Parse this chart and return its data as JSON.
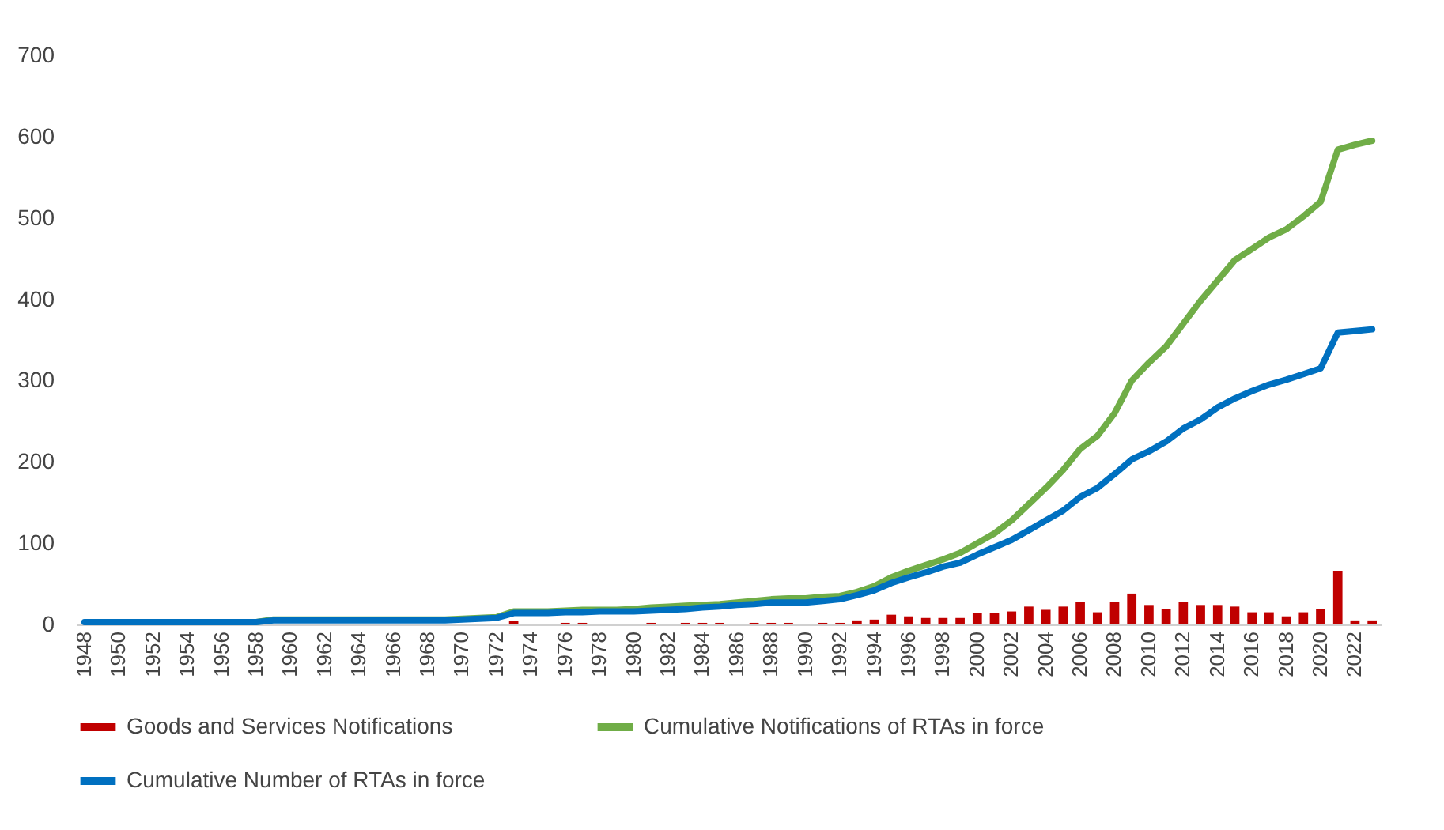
{
  "chart_data": {
    "type": "line",
    "categories": [
      "1948",
      null,
      "1950",
      null,
      "1952",
      null,
      "1954",
      null,
      "1956",
      null,
      "1958",
      null,
      "1960",
      null,
      "1962",
      null,
      "1964",
      null,
      "1966",
      null,
      "1968",
      null,
      "1970",
      null,
      "1972",
      null,
      "1974",
      null,
      "1976",
      null,
      "1978",
      null,
      "1980",
      null,
      "1982",
      null,
      "1984",
      null,
      "1986",
      null,
      "1988",
      null,
      "1990",
      null,
      "1992",
      null,
      "1994",
      null,
      "1996",
      null,
      "1998",
      null,
      "2000",
      null,
      "2002",
      null,
      "2004",
      null,
      "2006",
      null,
      "2008",
      null,
      "2010",
      null,
      "2012",
      null,
      "2014",
      null,
      "2016",
      null,
      "2018",
      null,
      "2020",
      null,
      "2022",
      null
    ],
    "series": [
      {
        "name": "Goods and Services Notifications",
        "type": "bar",
        "color": "#c00000",
        "values": [
          0,
          0,
          0,
          0,
          0,
          0,
          0,
          0,
          0,
          0,
          0,
          0,
          0,
          0,
          0,
          0,
          0,
          0,
          0,
          0,
          0,
          0,
          0,
          0,
          0,
          4,
          0,
          0,
          2,
          2,
          0,
          0,
          0,
          2,
          0,
          2,
          2,
          2,
          0,
          2,
          2,
          2,
          0,
          2,
          2,
          5,
          6,
          12,
          10,
          8,
          8,
          8,
          14,
          14,
          16,
          22,
          18,
          22,
          28,
          15,
          28,
          38,
          24,
          19,
          28,
          24,
          24,
          22,
          15,
          15,
          10,
          15,
          19,
          66,
          5,
          5
        ]
      },
      {
        "name": "Cumulative Notifications of RTAs in force",
        "color": "#70ad47",
        "values": [
          null,
          null,
          null,
          null,
          null,
          null,
          null,
          null,
          null,
          null,
          3,
          6,
          6,
          6,
          6,
          6,
          6,
          6,
          6,
          6,
          6,
          6,
          7,
          8,
          9,
          16,
          16,
          16,
          17,
          18,
          18,
          18,
          19,
          21,
          22,
          23,
          24,
          25,
          27,
          29,
          31,
          32,
          32,
          34,
          35,
          40,
          47,
          58,
          66,
          73,
          80,
          88,
          100,
          112,
          128,
          148,
          168,
          190,
          216,
          232,
          260,
          300,
          322,
          342,
          370,
          398,
          423,
          448,
          462,
          476,
          486,
          502,
          520,
          584,
          590,
          595
        ]
      },
      {
        "name": "Cumulative Number of RTAs in force",
        "color": "#0070c0",
        "values": [
          3,
          3,
          3,
          3,
          3,
          3,
          3,
          3,
          3,
          3,
          3,
          5,
          5,
          5,
          5,
          5,
          5,
          5,
          5,
          5,
          5,
          5,
          6,
          7,
          8,
          14,
          14,
          14,
          15,
          15,
          16,
          16,
          16,
          17,
          18,
          19,
          21,
          22,
          24,
          25,
          27,
          27,
          27,
          29,
          31,
          36,
          42,
          51,
          58,
          64,
          71,
          76,
          86,
          95,
          104,
          116,
          128,
          140,
          157,
          168,
          185,
          203,
          213,
          225,
          241,
          252,
          267,
          278,
          287,
          295,
          301,
          308,
          315,
          359,
          361,
          363
        ]
      }
    ],
    "ylim": [
      0,
      700
    ],
    "yticks": [
      0,
      100,
      200,
      300,
      400,
      500,
      600,
      700
    ],
    "legend": "bottom"
  }
}
